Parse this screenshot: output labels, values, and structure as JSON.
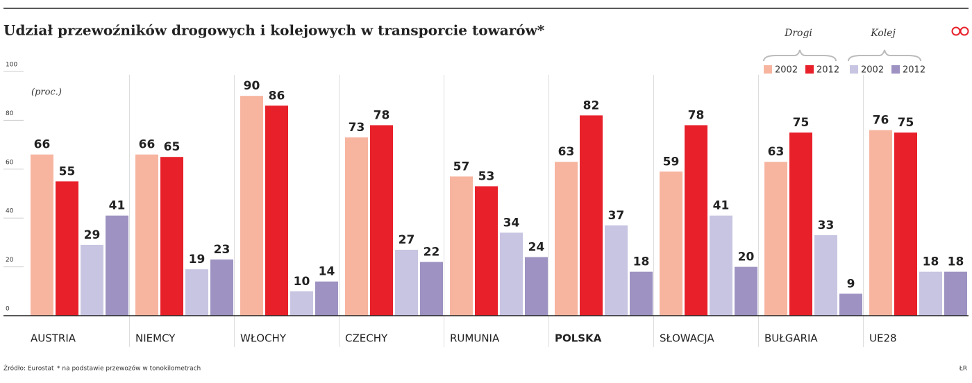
{
  "chart_data": {
    "type": "bar",
    "title": "Udział przewoźników drogowych i kolejowych w transporcie towarów*",
    "unit_label": "(proc.)",
    "categories": [
      "AUSTRIA",
      "NIEMCY",
      "WŁOCHY",
      "CZECHY",
      "RUMUNIA",
      "POLSKA",
      "SŁOWACJA",
      "BUŁGARIA",
      "UE28"
    ],
    "highlight_category": "POLSKA",
    "legend_groups": [
      "Drogi",
      "Kolej"
    ],
    "series": [
      {
        "name": "2002",
        "color": "#f7b5a0",
        "values": [
          66,
          66,
          90,
          73,
          57,
          63,
          59,
          63,
          76
        ]
      },
      {
        "name": "2012",
        "color": "#e8202a",
        "values": [
          55,
          65,
          86,
          78,
          53,
          82,
          78,
          75,
          75
        ]
      },
      {
        "name": "2002",
        "color": "#c7c5e1",
        "values": [
          29,
          19,
          10,
          27,
          34,
          37,
          41,
          33,
          18
        ]
      },
      {
        "name": "2012",
        "color": "#9d92c2",
        "values": [
          41,
          23,
          14,
          22,
          24,
          18,
          20,
          9,
          18
        ]
      }
    ],
    "ylim": [
      0,
      100
    ],
    "yticks": [
      0,
      20,
      40,
      60,
      80,
      100
    ],
    "source": "Źródło: Eurostat",
    "footnote": "* na podstawie przewozów w tonokilometrach",
    "credit": "ŁR"
  }
}
